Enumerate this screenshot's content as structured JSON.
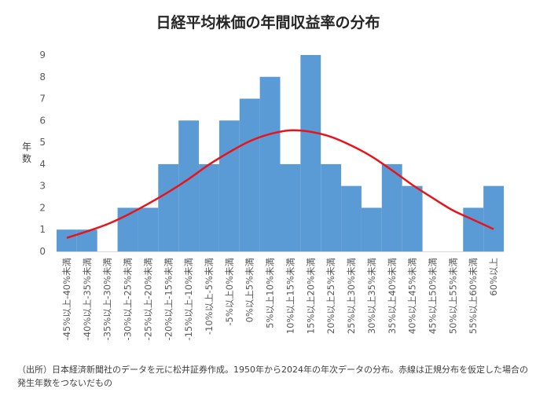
{
  "chart_data": {
    "type": "bar",
    "title": "日経平均株価の年間収益率の分布",
    "ylabel": "年数",
    "xlabel": "",
    "ylim": [
      0,
      9
    ],
    "yticks": [
      0,
      1,
      2,
      3,
      4,
      5,
      6,
      7,
      8,
      9
    ],
    "grid": false,
    "legend": "none",
    "categories": [
      "-45%以上-40%未満",
      "-40%以上-35%未満",
      "-35%以上-30%未満",
      "-30%以上-25%未満",
      "-25%以上-20%未満",
      "-20%以上-15%未満",
      "-15%以上-10%未満",
      "-10%以上-5%未満",
      "-5%以上0%未満",
      "0%以上5%未満",
      "5%以上10%未満",
      "10%以上15%未満",
      "15%以上20%未満",
      "20%以上25%未満",
      "25%以上30%未満",
      "30%以上35%未満",
      "35%以上40%未満",
      "40%以上45%未満",
      "45%以上50%未満",
      "50%以上55%未満",
      "55%以上60%未満",
      "60%以上"
    ],
    "series": [
      {
        "type": "bar",
        "color": "#5b9bd5",
        "values": [
          1,
          1,
          0,
          2,
          2,
          4,
          6,
          4,
          6,
          7,
          8,
          4,
          9,
          4,
          3,
          2,
          4,
          3,
          0,
          0,
          2,
          3
        ]
      },
      {
        "type": "line",
        "color": "#e8141b",
        "values": [
          0.62,
          0.92,
          1.25,
          1.68,
          2.18,
          2.72,
          3.32,
          3.98,
          4.55,
          5.05,
          5.38,
          5.55,
          5.48,
          5.25,
          4.85,
          4.35,
          3.72,
          3.05,
          2.45,
          1.88,
          1.45,
          1.02
        ]
      }
    ]
  },
  "note": "（出所）日本経済新聞社のデータを元に松井証券作成。1950年から2024年の年次データの分布。赤線は正規分布を仮定した場合の発生年数をつないだもの"
}
